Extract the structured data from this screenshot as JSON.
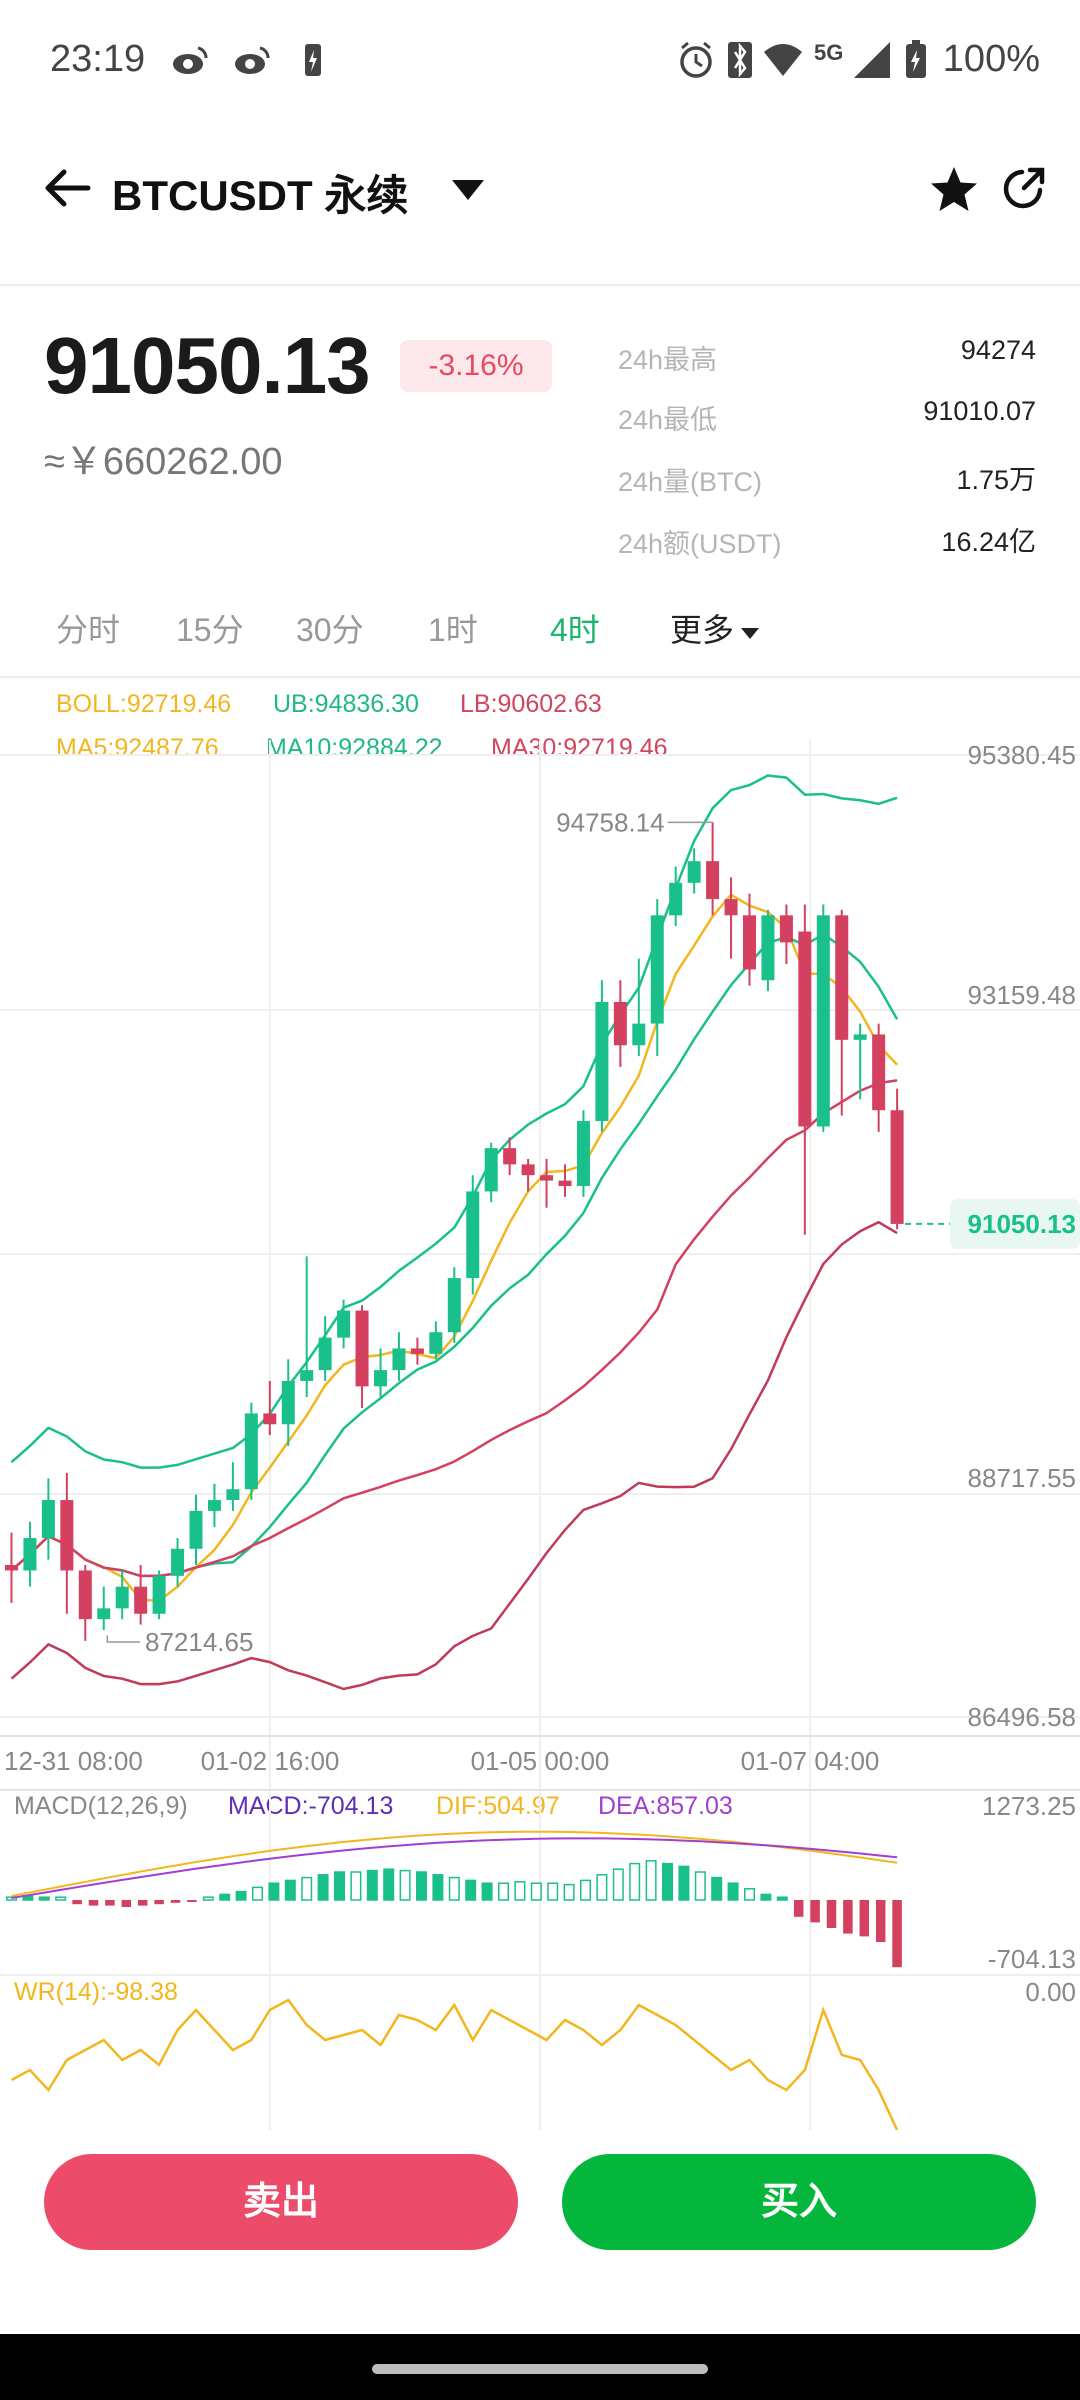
{
  "status_bar": {
    "time": "23:19",
    "network": "5G",
    "battery": "100%"
  },
  "header": {
    "pair": "BTCUSDT 永续"
  },
  "price": {
    "last": "91050.13",
    "change_pct": "-3.16%",
    "cny": "≈￥660262.00"
  },
  "stats": [
    {
      "label": "24h最高",
      "value": "94274"
    },
    {
      "label": "24h最低",
      "value": "91010.07"
    },
    {
      "label": "24h量(BTC)",
      "value": "1.75万"
    },
    {
      "label": "24h额(USDT)",
      "value": "16.24亿"
    }
  ],
  "tabs": [
    "分时",
    "15分",
    "30分",
    "1时",
    "4时"
  ],
  "active_tab": "4时",
  "more_label": "更多",
  "indicators": {
    "boll": "BOLL:92719.46",
    "ub": "UB:94836.30",
    "lb": "LB:90602.63",
    "ma5": "MA5:92487.76",
    "ma10": "MA10:92884.22",
    "ma30": "MA30:92719.46",
    "macd_title": "MACD(12,26,9)",
    "macd": "MACD:-704.13",
    "dif": "DIF:504.97",
    "dea": "DEA:857.03",
    "wr": "WR(14):-98.38"
  },
  "chart_data": {
    "type": "candlestick",
    "price_axis": [
      "95380.45",
      "93159.48",
      "88717.55",
      "86496.58"
    ],
    "time_axis": [
      "12-31 08:00",
      "01-02 16:00",
      "01-05 00:00",
      "01-07 04:00"
    ],
    "high_label": "94758.14",
    "low_label": "87214.65",
    "last_price_label": "91050.13",
    "macd_axis": [
      "1273.25",
      "-704.13"
    ],
    "wr_axis": [
      "0.00"
    ],
    "ylim": [
      86496.58,
      95380.45
    ],
    "candles": [
      [
        87900,
        88200,
        87550,
        87850
      ],
      [
        87850,
        88300,
        87700,
        88150
      ],
      [
        88150,
        88700,
        87950,
        88500
      ],
      [
        88500,
        88750,
        87450,
        87850
      ],
      [
        87850,
        87900,
        87200,
        87400
      ],
      [
        87400,
        87700,
        87300,
        87500
      ],
      [
        87500,
        87850,
        87400,
        87700
      ],
      [
        87700,
        87900,
        87350,
        87450
      ],
      [
        87450,
        87850,
        87400,
        87800
      ],
      [
        87800,
        88150,
        87700,
        88050
      ],
      [
        88050,
        88550,
        87900,
        88400
      ],
      [
        88400,
        88650,
        88250,
        88500
      ],
      [
        88500,
        88850,
        88400,
        88600
      ],
      [
        88600,
        89400,
        88500,
        89300
      ],
      [
        89300,
        89600,
        89100,
        89200
      ],
      [
        89200,
        89800,
        89000,
        89600
      ],
      [
        89600,
        90750,
        89450,
        89700
      ],
      [
        89700,
        90200,
        89600,
        90000
      ],
      [
        90000,
        90350,
        89900,
        90250
      ],
      [
        90250,
        90300,
        89350,
        89550
      ],
      [
        89550,
        89900,
        89450,
        89700
      ],
      [
        89700,
        90050,
        89600,
        89900
      ],
      [
        89900,
        90000,
        89750,
        89850
      ],
      [
        89850,
        90150,
        89800,
        90050
      ],
      [
        90050,
        90650,
        89950,
        90550
      ],
      [
        90550,
        91500,
        90400,
        91350
      ],
      [
        91350,
        91800,
        91250,
        91750
      ],
      [
        91750,
        91850,
        91500,
        91600
      ],
      [
        91600,
        91650,
        91350,
        91500
      ],
      [
        91500,
        91650,
        91200,
        91450
      ],
      [
        91450,
        91600,
        91300,
        91400
      ],
      [
        91400,
        92100,
        91300,
        92000
      ],
      [
        92000,
        93300,
        91900,
        93100
      ],
      [
        93100,
        93300,
        92500,
        92700
      ],
      [
        92700,
        93500,
        92600,
        92900
      ],
      [
        92900,
        94050,
        92600,
        93900
      ],
      [
        93900,
        94350,
        93800,
        94200
      ],
      [
        94200,
        94520,
        94100,
        94400
      ],
      [
        94400,
        94758,
        93900,
        94050
      ],
      [
        94050,
        94250,
        93500,
        93900
      ],
      [
        93900,
        94100,
        93250,
        93400
      ],
      [
        93300,
        93950,
        93200,
        93900
      ],
      [
        93900,
        94000,
        93450,
        93650
      ],
      [
        93750,
        94000,
        90950,
        91950
      ],
      [
        91950,
        94000,
        91900,
        93900
      ],
      [
        93900,
        93950,
        92050,
        92750
      ],
      [
        92750,
        92900,
        92200,
        92800
      ],
      [
        92800,
        92900,
        91900,
        92100
      ],
      [
        92100,
        92300,
        91000,
        91050
      ]
    ]
  }
}
